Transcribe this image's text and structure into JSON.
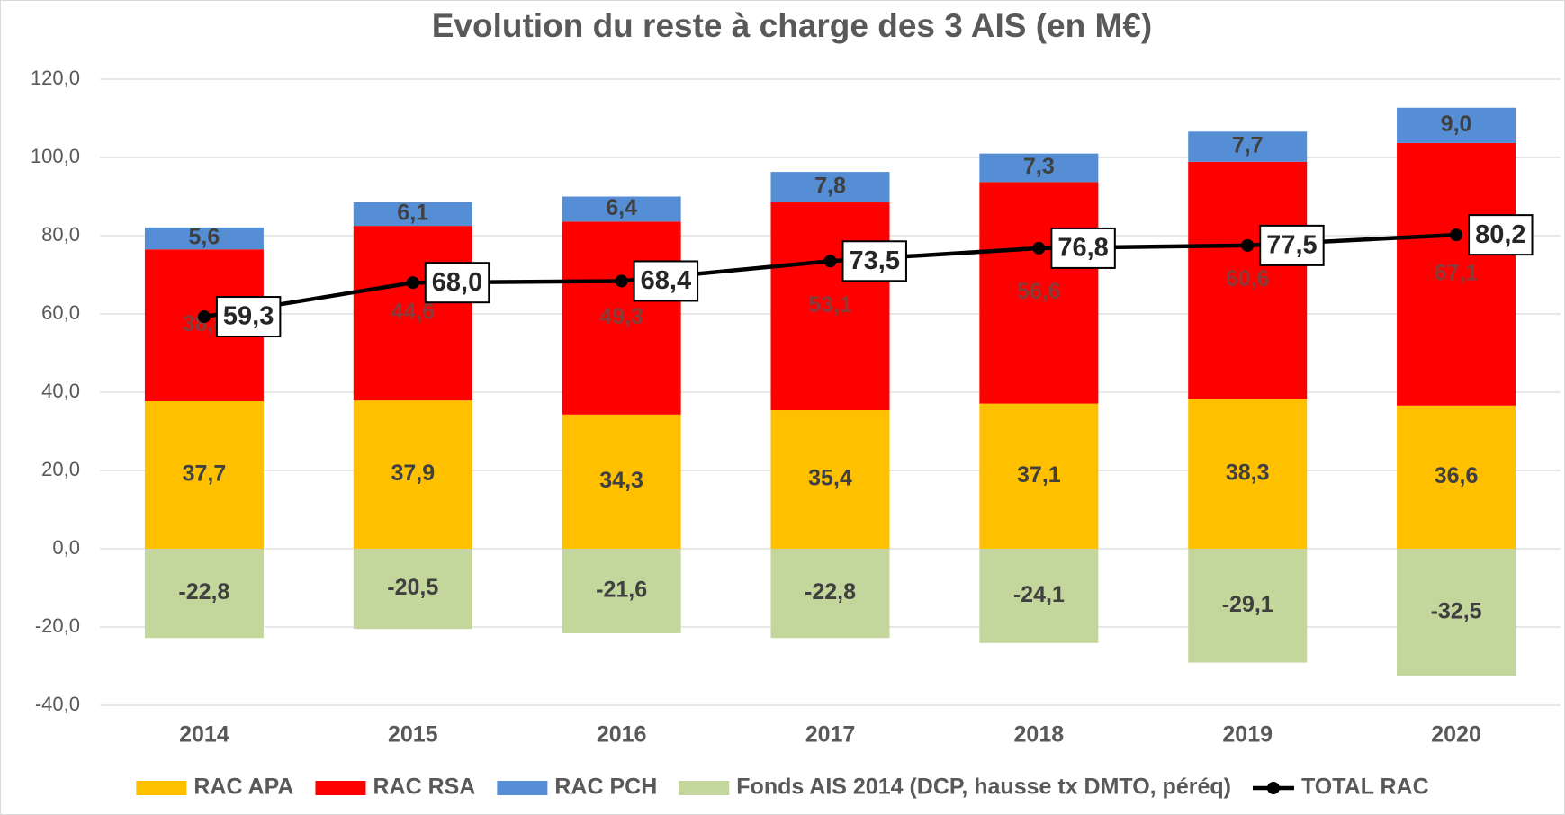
{
  "chart_data": {
    "type": "bar",
    "stacked": true,
    "title": "Evolution du reste à charge des 3 AIS (en M€)",
    "categories": [
      "2014",
      "2015",
      "2016",
      "2017",
      "2018",
      "2019",
      "2020"
    ],
    "series": [
      {
        "name": "RAC APA",
        "color": "#ffc000",
        "label_color": "#404040",
        "values": [
          37.7,
          37.9,
          34.3,
          35.4,
          37.1,
          38.3,
          36.6
        ],
        "value_labels": [
          "37,7",
          "37,9",
          "34,3",
          "35,4",
          "37,1",
          "38,3",
          "36,6"
        ]
      },
      {
        "name": "RAC RSA",
        "color": "#ff0000",
        "label_color": "#8b3a3a",
        "values": [
          38.8,
          44.6,
          49.3,
          53.1,
          56.6,
          60.6,
          67.1
        ],
        "value_labels": [
          "38,8",
          "44,6",
          "49,3",
          "53,1",
          "56,6",
          "60,6",
          "67,1"
        ]
      },
      {
        "name": "RAC PCH",
        "color": "#558ed5",
        "label_color": "#404040",
        "values": [
          5.6,
          6.1,
          6.4,
          7.8,
          7.3,
          7.7,
          9.0
        ],
        "value_labels": [
          "5,6",
          "6,1",
          "6,4",
          "7,8",
          "7,3",
          "7,7",
          "9,0"
        ]
      },
      {
        "name": "Fonds AIS 2014 (DCP, hausse tx DMTO, péréq)",
        "color": "#c3d69b",
        "label_color": "#404040",
        "values": [
          -22.8,
          -20.5,
          -21.6,
          -22.8,
          -24.1,
          -29.1,
          -32.5
        ],
        "value_labels": [
          "-22,8",
          "-20,5",
          "-21,6",
          "-22,8",
          "-24,1",
          "-29,1",
          "-32,5"
        ]
      },
      {
        "name": "TOTAL RAC",
        "type": "line",
        "color": "#000000",
        "label_color": "#262626",
        "values": [
          59.3,
          68.0,
          68.4,
          73.5,
          76.8,
          77.5,
          80.2
        ],
        "value_labels": [
          "59,3",
          "68,0",
          "68,4",
          "73,5",
          "76,8",
          "77,5",
          "80,2"
        ]
      }
    ],
    "ylim": [
      -40,
      120
    ],
    "yticks": [
      {
        "value": -40,
        "label": "-40,0"
      },
      {
        "value": -20,
        "label": "-20,0"
      },
      {
        "value": 0,
        "label": "0,0"
      },
      {
        "value": 20,
        "label": "20,0"
      },
      {
        "value": 40,
        "label": "40,0"
      },
      {
        "value": 60,
        "label": "60,0"
      },
      {
        "value": 80,
        "label": "80,0"
      },
      {
        "value": 100,
        "label": "100,0"
      },
      {
        "value": 120,
        "label": "120,0"
      }
    ],
    "grid": true,
    "legend": "bottom"
  }
}
